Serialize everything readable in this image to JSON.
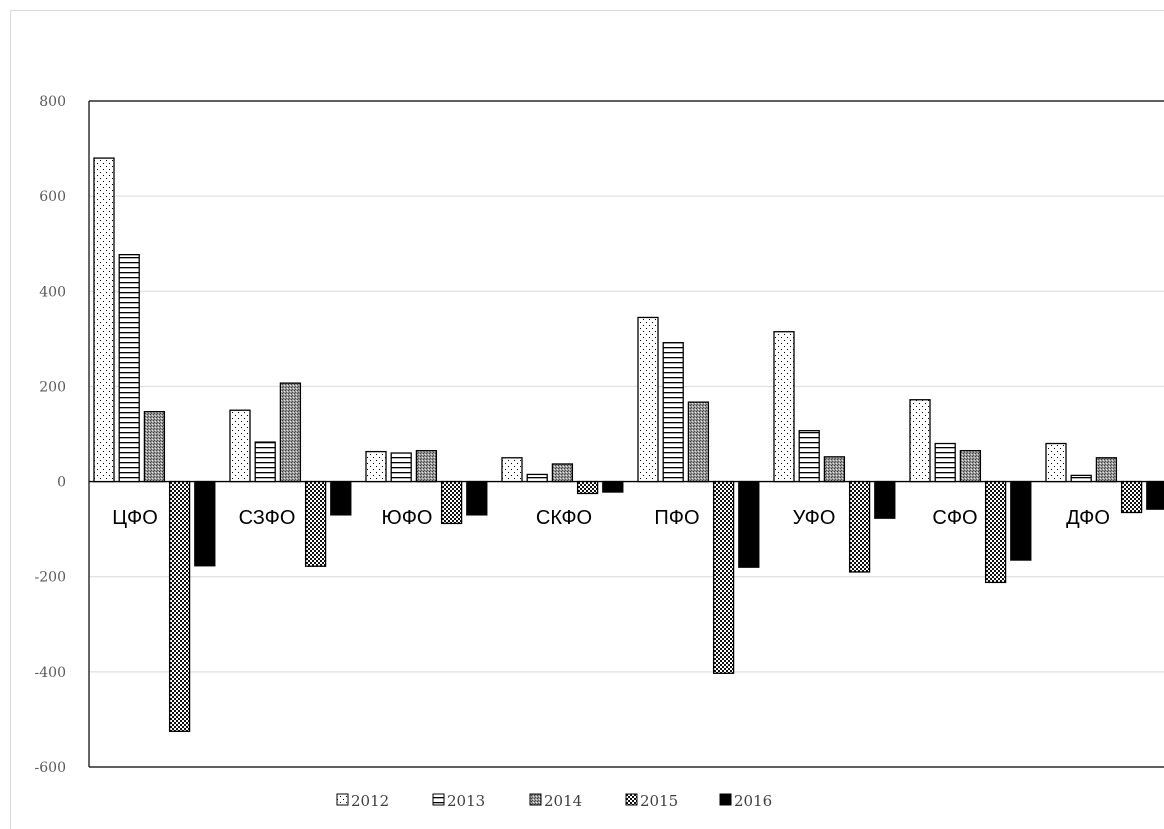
{
  "chart_data": {
    "type": "bar",
    "title": "",
    "xlabel": "",
    "ylabel": "",
    "categories": [
      "ЦФО",
      "СЗФО",
      "ЮФО",
      "СКФО",
      "ПФО",
      "УФО",
      "СФО",
      "ДФО"
    ],
    "series": [
      {
        "name": "2012",
        "pattern": "dots",
        "values": [
          680,
          150,
          63,
          50,
          345,
          315,
          172,
          80
        ]
      },
      {
        "name": "2013",
        "pattern": "hlines",
        "values": [
          477,
          83,
          60,
          15,
          292,
          107,
          80,
          13
        ]
      },
      {
        "name": "2014",
        "pattern": "dense-gray",
        "values": [
          147,
          207,
          65,
          37,
          167,
          52,
          65,
          50
        ]
      },
      {
        "name": "2015",
        "pattern": "checker",
        "values": [
          -525,
          -178,
          -88,
          -25,
          -403,
          -190,
          -212,
          -65
        ]
      },
      {
        "name": "2016",
        "pattern": "solid",
        "values": [
          -177,
          -70,
          -70,
          -22,
          -180,
          -77,
          -165,
          -58
        ]
      }
    ],
    "ylim": [
      -600,
      800
    ],
    "yticks": [
      -600,
      -400,
      -200,
      0,
      200,
      400,
      600,
      800
    ],
    "grid": true,
    "legend_position": "bottom"
  }
}
